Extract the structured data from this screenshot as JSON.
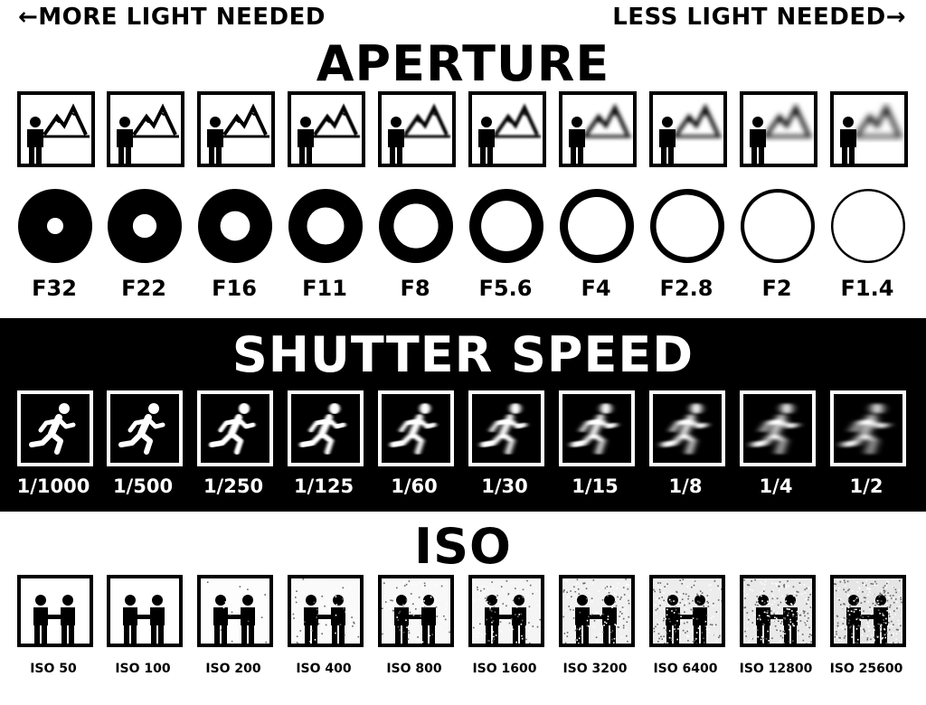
{
  "header": {
    "left_label": "←MORE LIGHT NEEDED",
    "right_label": "LESS LIGHT NEEDED→"
  },
  "aperture": {
    "title": "APERTURE",
    "stops": [
      "F32",
      "F22",
      "F16",
      "F11",
      "F8",
      "F5.6",
      "F4",
      "F2.8",
      "F2",
      "F1.4"
    ],
    "opening_fraction": [
      0.22,
      0.32,
      0.4,
      0.5,
      0.6,
      0.68,
      0.78,
      0.84,
      0.9,
      0.94
    ],
    "background_blur": [
      0,
      0,
      0.3,
      0.6,
      1,
      1.4,
      2,
      2.5,
      3,
      3.5
    ],
    "icon": "person-mountain-scene-icon"
  },
  "shutter_speed": {
    "title": "SHUTTER SPEED",
    "speeds": [
      "1/1000",
      "1/500",
      "1/250",
      "1/125",
      "1/60",
      "1/30",
      "1/15",
      "1/8",
      "1/4",
      "1/2"
    ],
    "motion_blur": [
      0,
      0,
      1,
      1.5,
      2,
      2.6,
      3.2,
      3.8,
      4.4,
      5
    ],
    "icon": "running-person-icon"
  },
  "iso": {
    "title": "ISO",
    "values": [
      "ISO 50",
      "ISO 100",
      "ISO 200",
      "ISO 400",
      "ISO 800",
      "ISO 1600",
      "ISO 3200",
      "ISO 6400",
      "ISO 12800",
      "ISO 25600"
    ],
    "noise_level": [
      0,
      0,
      0.05,
      0.12,
      0.18,
      0.26,
      0.34,
      0.44,
      0.54,
      0.66
    ],
    "icon": "two-people-handshake-icon"
  },
  "colors": {
    "foreground": "#000000",
    "background": "#ffffff"
  }
}
